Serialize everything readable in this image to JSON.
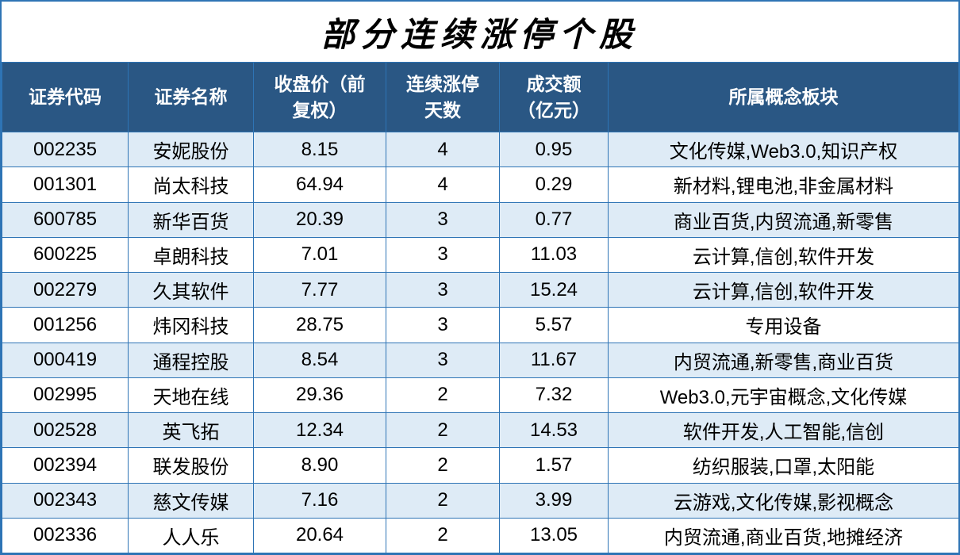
{
  "chart_data": {
    "type": "table",
    "title": "部分连续涨停个股",
    "columns": [
      "证券代码",
      "证券名称",
      "收盘价（前\n复权）",
      "连续涨停\n天数",
      "成交额\n（亿元）",
      "所属概念板块"
    ],
    "rows": [
      [
        "002235",
        "安妮股份",
        "8.15",
        "4",
        "0.95",
        "文化传媒,Web3.0,知识产权"
      ],
      [
        "001301",
        "尚太科技",
        "64.94",
        "4",
        "0.29",
        "新材料,锂电池,非金属材料"
      ],
      [
        "600785",
        "新华百货",
        "20.39",
        "3",
        "0.77",
        "商业百货,内贸流通,新零售"
      ],
      [
        "600225",
        "卓朗科技",
        "7.01",
        "3",
        "11.03",
        "云计算,信创,软件开发"
      ],
      [
        "002279",
        "久其软件",
        "7.77",
        "3",
        "15.24",
        "云计算,信创,软件开发"
      ],
      [
        "001256",
        "炜冈科技",
        "28.75",
        "3",
        "5.57",
        "专用设备"
      ],
      [
        "000419",
        "通程控股",
        "8.54",
        "3",
        "11.67",
        "内贸流通,新零售,商业百货"
      ],
      [
        "002995",
        "天地在线",
        "29.36",
        "2",
        "7.32",
        "Web3.0,元宇宙概念,文化传媒"
      ],
      [
        "002528",
        "英飞拓",
        "12.34",
        "2",
        "14.53",
        "软件开发,人工智能,信创"
      ],
      [
        "002394",
        "联发股份",
        "8.90",
        "2",
        "1.57",
        "纺织服装,口罩,太阳能"
      ],
      [
        "002343",
        "慈文传媒",
        "7.16",
        "2",
        "3.99",
        "云游戏,文化传媒,影视概念"
      ],
      [
        "002336",
        "人人乐",
        "20.64",
        "2",
        "13.05",
        "内贸流通,商业百货,地摊经济"
      ]
    ]
  },
  "colors": {
    "header_bg": "#2A5784",
    "row_alt": "#DEEBF6",
    "border": "#2E74B5",
    "header_text": "#FFFFFF",
    "title_text": "#000000"
  }
}
